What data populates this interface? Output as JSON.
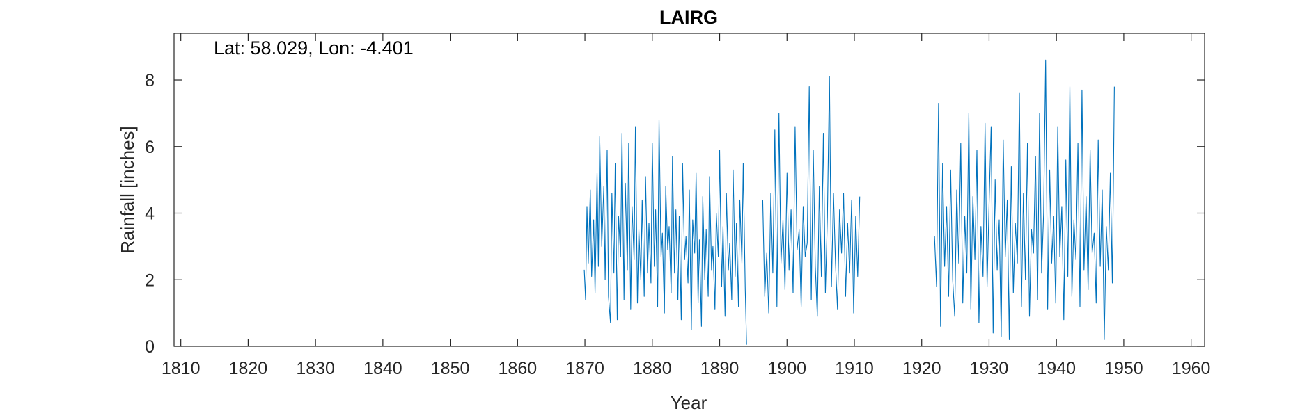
{
  "chart_data": {
    "type": "line",
    "title": "LAIRG",
    "annotation": "Lat: 58.029, Lon: -4.401",
    "xlabel": "Year",
    "ylabel": "Rainfall [inches]",
    "xlim": [
      1809,
      1962
    ],
    "ylim": [
      0,
      9.4
    ],
    "xticks": [
      1810,
      1820,
      1830,
      1840,
      1850,
      1860,
      1870,
      1880,
      1890,
      1900,
      1910,
      1920,
      1930,
      1940,
      1950,
      1960
    ],
    "xtick_labels": [
      "1810",
      "1820",
      "1830",
      "1840",
      "1850",
      "1860",
      "1870",
      "1880",
      "1890",
      "1900",
      "1910",
      "1920",
      "1930",
      "1940",
      "1950",
      "1960"
    ],
    "yticks": [
      0,
      2,
      4,
      6,
      8
    ],
    "ytick_labels": [
      "0",
      "2",
      "4",
      "6",
      "8"
    ],
    "line_color": "#0072BD",
    "box": true,
    "grid": false,
    "series": [
      {
        "segments": [
          {
            "x": [
              1869.9,
              1870.1,
              1870.3,
              1870.5,
              1870.8,
              1871.0,
              1871.3,
              1871.5,
              1871.8,
              1872.0,
              1872.2,
              1872.5,
              1872.8,
              1873.0,
              1873.3,
              1873.5,
              1873.8,
              1874.0,
              1874.3,
              1874.5,
              1874.8,
              1875.0,
              1875.3,
              1875.5,
              1875.8,
              1876.0,
              1876.3,
              1876.5,
              1876.8,
              1877.0,
              1877.3,
              1877.5,
              1877.8,
              1878.0,
              1878.3,
              1878.5,
              1878.8,
              1879.0,
              1879.3,
              1879.5,
              1879.8,
              1880.0,
              1880.3,
              1880.5,
              1880.8,
              1881.0,
              1881.3,
              1881.5,
              1881.8,
              1882.0,
              1882.3,
              1882.5,
              1882.8,
              1883.0,
              1883.3,
              1883.5,
              1883.8,
              1884.0,
              1884.3,
              1884.5,
              1884.8,
              1885.0,
              1885.3,
              1885.5,
              1885.8,
              1886.0,
              1886.3,
              1886.5,
              1886.8,
              1887.0,
              1887.3,
              1887.5,
              1887.8,
              1888.0,
              1888.3,
              1888.5,
              1888.8,
              1889.0,
              1889.3,
              1889.5,
              1889.8,
              1890.0,
              1890.3,
              1890.5,
              1890.8,
              1891.0,
              1891.3,
              1891.5,
              1891.8,
              1892.0,
              1892.3,
              1892.5,
              1892.8,
              1893.0,
              1893.3,
              1893.5,
              1893.8,
              1894.0
            ],
            "y": [
              2.3,
              1.4,
              4.2,
              2.5,
              4.7,
              2.1,
              3.8,
              1.6,
              5.2,
              2.4,
              6.3,
              3.0,
              4.8,
              2.0,
              5.9,
              1.5,
              0.7,
              4.6,
              2.2,
              5.5,
              0.8,
              3.9,
              2.7,
              6.4,
              1.4,
              4.9,
              2.3,
              6.1,
              1.1,
              4.2,
              2.6,
              6.6,
              1.3,
              3.5,
              2.0,
              4.4,
              1.5,
              5.1,
              2.2,
              3.7,
              1.9,
              6.1,
              2.4,
              4.1,
              1.2,
              6.8,
              2.7,
              3.4,
              1.0,
              4.8,
              2.9,
              3.6,
              1.6,
              5.7,
              2.2,
              4.1,
              1.4,
              3.9,
              0.8,
              5.5,
              2.6,
              3.3,
              1.9,
              4.7,
              0.5,
              3.8,
              2.8,
              5.2,
              1.3,
              3.2,
              0.6,
              4.5,
              2.0,
              3.5,
              1.5,
              5.1,
              2.3,
              3.0,
              1.1,
              4.0,
              2.7,
              5.9,
              1.8,
              3.6,
              0.9,
              4.6,
              2.3,
              3.1,
              1.4,
              5.3,
              2.1,
              3.7,
              1.2,
              4.4,
              2.5,
              5.5,
              1.7,
              0.05
            ]
          },
          {
            "x": [
              1896.4,
              1896.7,
              1897.0,
              1897.3,
              1897.6,
              1897.9,
              1898.2,
              1898.5,
              1898.8,
              1899.1,
              1899.4,
              1899.7,
              1900.0,
              1900.3,
              1900.6,
              1900.9,
              1901.2,
              1901.5,
              1901.8,
              1902.1,
              1902.4,
              1902.7,
              1903.0,
              1903.3,
              1903.6,
              1903.9,
              1904.2,
              1904.5,
              1904.8,
              1905.1,
              1905.4,
              1905.7,
              1906.0,
              1906.3,
              1906.6,
              1906.9,
              1907.2,
              1907.5,
              1907.8,
              1908.1,
              1908.4,
              1908.7,
              1909.0,
              1909.3,
              1909.6,
              1909.9,
              1910.2,
              1910.5,
              1910.8
            ],
            "y": [
              4.4,
              1.5,
              2.8,
              1.0,
              4.6,
              2.2,
              6.5,
              1.2,
              7.0,
              2.5,
              3.8,
              1.7,
              5.2,
              2.3,
              4.1,
              1.6,
              6.6,
              2.9,
              3.5,
              1.2,
              4.2,
              2.7,
              3.1,
              7.8,
              1.4,
              5.9,
              2.4,
              0.9,
              4.8,
              2.1,
              6.4,
              1.6,
              3.9,
              8.1,
              1.8,
              4.6,
              2.5,
              1.1,
              4.1,
              2.8,
              4.6,
              1.5,
              3.7,
              2.2,
              4.4,
              1.0,
              3.9,
              2.1,
              4.5
            ]
          },
          {
            "x": [
              1921.9,
              1922.2,
              1922.5,
              1922.8,
              1923.1,
              1923.4,
              1923.7,
              1924.0,
              1924.3,
              1924.6,
              1924.9,
              1925.2,
              1925.5,
              1925.8,
              1926.1,
              1926.4,
              1926.7,
              1927.0,
              1927.3,
              1927.6,
              1927.9,
              1928.2,
              1928.5,
              1928.8,
              1929.1,
              1929.4,
              1929.7,
              1930.0,
              1930.3,
              1930.6,
              1930.9,
              1931.2,
              1931.5,
              1931.8,
              1932.1,
              1932.4,
              1932.7,
              1933.0,
              1933.3,
              1933.6,
              1933.9,
              1934.2,
              1934.5,
              1934.8,
              1935.1,
              1935.4,
              1935.7,
              1936.0,
              1936.3,
              1936.6,
              1936.9,
              1937.2,
              1937.5,
              1937.8,
              1938.1,
              1938.4,
              1938.7,
              1939.0,
              1939.3,
              1939.6,
              1939.9,
              1940.2,
              1940.5,
              1940.8,
              1941.1,
              1941.4,
              1941.7,
              1942.0,
              1942.3,
              1942.6,
              1942.9,
              1943.2,
              1943.5,
              1943.8,
              1944.1,
              1944.4,
              1944.7,
              1945.0,
              1945.3,
              1945.6,
              1945.9,
              1946.2,
              1946.5,
              1946.8,
              1947.1,
              1947.4,
              1947.7,
              1948.0,
              1948.3,
              1948.6
            ],
            "y": [
              3.3,
              1.8,
              7.3,
              0.6,
              5.5,
              2.4,
              4.2,
              1.5,
              5.3,
              2.0,
              0.9,
              4.7,
              2.5,
              6.1,
              1.3,
              3.9,
              2.2,
              7.0,
              1.1,
              4.5,
              2.6,
              5.9,
              0.7,
              3.6,
              2.1,
              6.7,
              1.8,
              4.3,
              6.6,
              0.4,
              5.0,
              2.3,
              3.8,
              0.3,
              6.2,
              2.7,
              4.4,
              0.2,
              5.4,
              1.6,
              3.7,
              2.5,
              7.6,
              1.2,
              4.6,
              2.0,
              6.1,
              0.9,
              3.5,
              2.8,
              5.7,
              1.4,
              7.0,
              2.2,
              4.0,
              8.6,
              1.1,
              5.3,
              2.5,
              3.9,
              1.3,
              6.6,
              2.7,
              4.2,
              0.8,
              5.6,
              2.1,
              7.8,
              1.5,
              3.8,
              2.6,
              6.1,
              1.2,
              7.7,
              2.3,
              4.5,
              1.7,
              5.9,
              2.8,
              3.4,
              1.3,
              6.2,
              2.4,
              4.7,
              0.2,
              3.6,
              2.3,
              5.2,
              1.9,
              7.8
            ]
          }
        ]
      }
    ]
  }
}
